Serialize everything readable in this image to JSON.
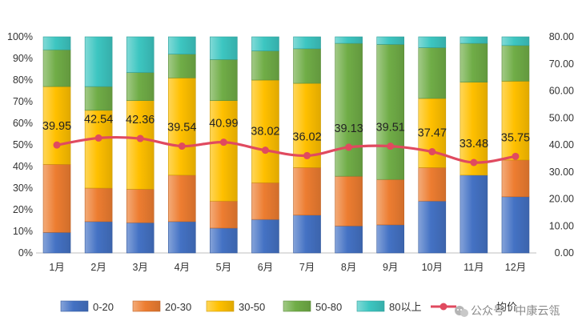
{
  "chart_data": {
    "type": "bar",
    "stacked": "percent",
    "categories": [
      "1月",
      "2月",
      "3月",
      "4月",
      "5月",
      "6月",
      "7月",
      "8月",
      "9月",
      "10月",
      "11月",
      "12月"
    ],
    "series": [
      {
        "name": "0-20",
        "color": "#4472C4",
        "values": [
          9.5,
          14.5,
          14,
          14.5,
          11.5,
          15.5,
          17.5,
          12.5,
          13,
          24,
          36,
          26
        ]
      },
      {
        "name": "20-30",
        "color": "#ED7D31",
        "values": [
          31.5,
          15.5,
          15.5,
          21.5,
          12.5,
          17,
          22,
          23,
          21,
          15.5,
          0,
          17
        ]
      },
      {
        "name": "30-50",
        "color": "#FFC000",
        "values": [
          36,
          36,
          41,
          45,
          46.5,
          47.5,
          39,
          0,
          0,
          32,
          43,
          36.5
        ]
      },
      {
        "name": "50-80",
        "color": "#70AD47",
        "values": [
          17,
          11,
          13,
          11,
          19,
          13.5,
          16,
          61.5,
          62.5,
          23.5,
          18,
          16.5
        ]
      },
      {
        "name": "80以上",
        "color": "#3DC6C1",
        "values": [
          6,
          23,
          16.5,
          8,
          10.5,
          6.5,
          5.5,
          3,
          3.5,
          5,
          3,
          4
        ]
      }
    ],
    "line_series": {
      "name": "均价",
      "color": "#E04A5F",
      "axis": "secondary",
      "values": [
        39.95,
        42.54,
        42.36,
        39.54,
        40.99,
        38.02,
        36.02,
        39.13,
        39.51,
        37.47,
        33.48,
        35.75
      ],
      "labels": [
        "39.95",
        "42.54",
        "42.36",
        "39.54",
        "40.99",
        "38.02",
        "36.02",
        "39.13",
        "39.51",
        "37.47",
        "33.48",
        "35.75"
      ]
    },
    "y_left": {
      "ticks": [
        "0%",
        "10%",
        "20%",
        "30%",
        "40%",
        "50%",
        "60%",
        "70%",
        "80%",
        "90%",
        "100%"
      ],
      "ylim": [
        0,
        100
      ]
    },
    "y_right": {
      "ticks": [
        "0.00",
        "10.00",
        "20.00",
        "30.00",
        "40.00",
        "50.00",
        "60.00",
        "70.00",
        "80.00"
      ],
      "ylim": [
        0,
        80
      ]
    },
    "legend_placement": "bottom",
    "grid": false
  },
  "watermark": {
    "text": "公众号 · 中康云瓴",
    "icon": "wechat-icon"
  }
}
